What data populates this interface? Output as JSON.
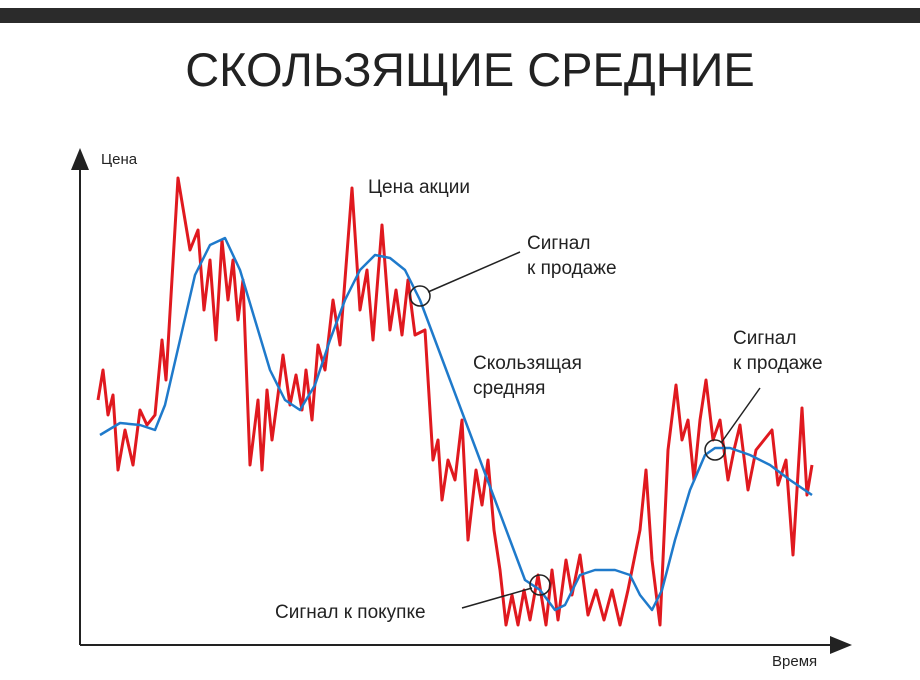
{
  "chart_data": {
    "type": "line",
    "title": "СКОЛЬЗЯЩИЕ СРЕДНИЕ",
    "y_label": "Цена",
    "x_label": "Время",
    "xlim": [
      0,
      760
    ],
    "ylim": [
      0,
      485
    ],
    "series": [
      {
        "color": "#e0191f",
        "x": [
          18,
          23,
          28,
          33,
          38,
          45,
          53,
          60,
          67,
          75,
          82,
          86,
          98,
          110,
          118,
          124,
          130,
          136,
          142,
          148,
          153,
          158,
          163,
          170,
          178,
          182,
          187,
          192,
          198,
          203,
          210,
          216,
          222,
          226,
          232,
          238,
          245,
          253,
          260,
          272,
          280,
          287,
          293,
          302,
          310,
          316,
          322,
          328,
          335,
          345,
          353,
          358,
          362,
          368,
          375,
          382,
          388,
          396,
          402,
          408,
          414,
          420,
          426,
          432,
          438,
          444,
          450,
          458,
          466,
          472,
          478,
          486,
          492,
          500,
          508,
          516,
          524,
          532,
          540,
          548,
          554,
          560,
          566,
          572,
          580,
          588,
          596,
          602,
          608,
          614,
          620,
          626,
          633,
          640,
          648,
          654,
          660,
          668,
          676,
          684,
          692,
          698,
          706,
          713,
          722,
          727,
          732
        ],
        "values": [
          245,
          275,
          230,
          250,
          175,
          215,
          180,
          235,
          220,
          230,
          305,
          265,
          467,
          395,
          415,
          335,
          385,
          305,
          405,
          345,
          385,
          325,
          365,
          180,
          245,
          175,
          255,
          205,
          250,
          290,
          240,
          270,
          235,
          275,
          225,
          300,
          275,
          345,
          300,
          457,
          335,
          375,
          305,
          420,
          315,
          355,
          310,
          365,
          310,
          315,
          185,
          205,
          145,
          185,
          165,
          225,
          105,
          175,
          140,
          185,
          115,
          75,
          20,
          50,
          20,
          55,
          25,
          70,
          20,
          75,
          25,
          85,
          50,
          90,
          30,
          55,
          25,
          55,
          20,
          55,
          85,
          115,
          175,
          85,
          20,
          195,
          260,
          205,
          225,
          165,
          225,
          265,
          205,
          225,
          165,
          195,
          220,
          155,
          195,
          205,
          215,
          160,
          185,
          90,
          237,
          150,
          180
        ]
      },
      {
        "color": "#1f7acb",
        "x": [
          20,
          40,
          60,
          75,
          85,
          100,
          115,
          130,
          145,
          160,
          175,
          190,
          205,
          220,
          235,
          250,
          265,
          280,
          295,
          310,
          325,
          340,
          355,
          370,
          385,
          400,
          415,
          430,
          445,
          460,
          475,
          485,
          500,
          515,
          535,
          550,
          560,
          572,
          582,
          595,
          610,
          625,
          635,
          650,
          670,
          690,
          710,
          732
        ],
        "values": [
          210,
          222,
          220,
          215,
          240,
          305,
          370,
          400,
          407,
          375,
          325,
          275,
          245,
          235,
          260,
          305,
          345,
          375,
          390,
          387,
          375,
          345,
          305,
          265,
          225,
          185,
          145,
          105,
          65,
          55,
          35,
          40,
          70,
          75,
          75,
          70,
          50,
          35,
          55,
          105,
          155,
          190,
          197,
          197,
          190,
          180,
          165,
          150
        ]
      }
    ],
    "annotations": [
      {
        "lines": [
          "Цена акции"
        ]
      },
      {
        "lines": [
          "Сигнал",
          "к продаже"
        ]
      },
      {
        "lines": [
          "Скользящая",
          "средняя"
        ]
      },
      {
        "lines": [
          "Сигнал к покупке"
        ]
      },
      {
        "lines": [
          "Сигнал",
          "к продаже"
        ]
      }
    ]
  }
}
